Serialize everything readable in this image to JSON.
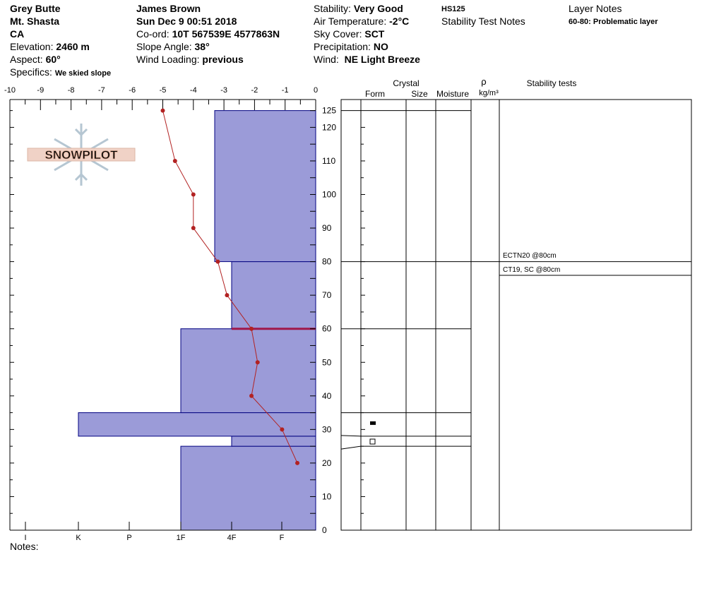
{
  "header": {
    "location": {
      "name": "Grey Butte",
      "range": "Mt. Shasta",
      "state": "CA",
      "elevation_label": "Elevation:",
      "elevation_value": "2460 m",
      "aspect_label": "Aspect:",
      "aspect_value": "60°",
      "specifics_label": "Specifics:",
      "specifics_value": "We skied slope"
    },
    "observer": {
      "name": "James Brown",
      "datetime": "Sun Dec 9 00:51 2018",
      "coord_label": "Co-ord:",
      "coord_value": "10T 567539E 4577863N",
      "slope_label": "Slope Angle:",
      "slope_value": "38°",
      "wind_loading_label": "Wind Loading:",
      "wind_loading_value": "previous"
    },
    "weather": {
      "stability_label": "Stability:",
      "stability_value": "Very Good",
      "air_temp_label": "Air Temperature:",
      "air_temp_value": "-2°C",
      "sky_label": "Sky Cover:",
      "sky_value": "SCT",
      "precip_label": "Precipitation:",
      "precip_value": "NO",
      "wind_label": "Wind:",
      "wind_value": "NE Light Breeze"
    },
    "hs": "HS125",
    "stability_test_notes_label": "Stability Test Notes",
    "layer_notes": {
      "title": "Layer Notes",
      "item": "60-80: Problematic layer"
    }
  },
  "notes_label": "Notes:",
  "logo": {
    "text": "SNOWPILOT"
  },
  "colors": {
    "hardness_fill": "#9b9bd8",
    "hardness_stroke": "#000080",
    "temp_line": "#b22222",
    "problem_line": "#a0184a"
  },
  "chart_data": {
    "type": "snow_profile",
    "temperature_axis": {
      "ticks": [
        "-10",
        "-9",
        "-8",
        "-7",
        "-6",
        "-5",
        "-4",
        "-3",
        "-2",
        "-1",
        "0"
      ],
      "range": [
        -10,
        0
      ]
    },
    "hardness_axis": {
      "labels": [
        "I",
        "K",
        "P",
        "1F",
        "4F",
        "F"
      ]
    },
    "height_axis": {
      "range": [
        0,
        125
      ],
      "labels": [
        "0",
        "10",
        "20",
        "30",
        "40",
        "50",
        "60",
        "70",
        "80",
        "90",
        "100",
        "110",
        "120",
        "125"
      ]
    },
    "hardness_layers": [
      {
        "bottom": 0,
        "top": 25,
        "hardness": "1F"
      },
      {
        "bottom": 25,
        "top": 28,
        "hardness": "4F"
      },
      {
        "bottom": 28,
        "top": 35,
        "hardness": "K"
      },
      {
        "bottom": 35,
        "top": 60,
        "hardness": "1F"
      },
      {
        "bottom": 60,
        "top": 80,
        "hardness": "4F"
      },
      {
        "bottom": 80,
        "top": 125,
        "hardness": "4F+"
      }
    ],
    "problem_layer_depth": 60,
    "temperature_profile": [
      {
        "height": 125,
        "temp": -5.0
      },
      {
        "height": 110,
        "temp": -4.6
      },
      {
        "height": 100,
        "temp": -4.0
      },
      {
        "height": 90,
        "temp": -4.0
      },
      {
        "height": 80,
        "temp": -3.2
      },
      {
        "height": 70,
        "temp": -2.9
      },
      {
        "height": 60,
        "temp": -2.1
      },
      {
        "height": 50,
        "temp": -1.9
      },
      {
        "height": 40,
        "temp": -2.1
      },
      {
        "height": 30,
        "temp": -1.1
      },
      {
        "height": 20,
        "temp": -0.6
      }
    ],
    "table_headers": {
      "crystal": "Crystal",
      "form": "Form",
      "size": "Size",
      "moisture": "Moisture",
      "rho": "ρ",
      "density_unit": "kg/m³",
      "stability_tests": "Stability tests"
    },
    "layer_boundaries": [
      125,
      80,
      60,
      35,
      28,
      25
    ],
    "crystal_symbols": [
      {
        "height": 32,
        "shape": "filled-rect"
      },
      {
        "height": 26.5,
        "shape": "open-square"
      }
    ],
    "stability_tests": [
      {
        "label": "ECTN20 @80cm",
        "height": 80
      },
      {
        "label": "CT19, SC @80cm",
        "height": 80
      }
    ]
  }
}
